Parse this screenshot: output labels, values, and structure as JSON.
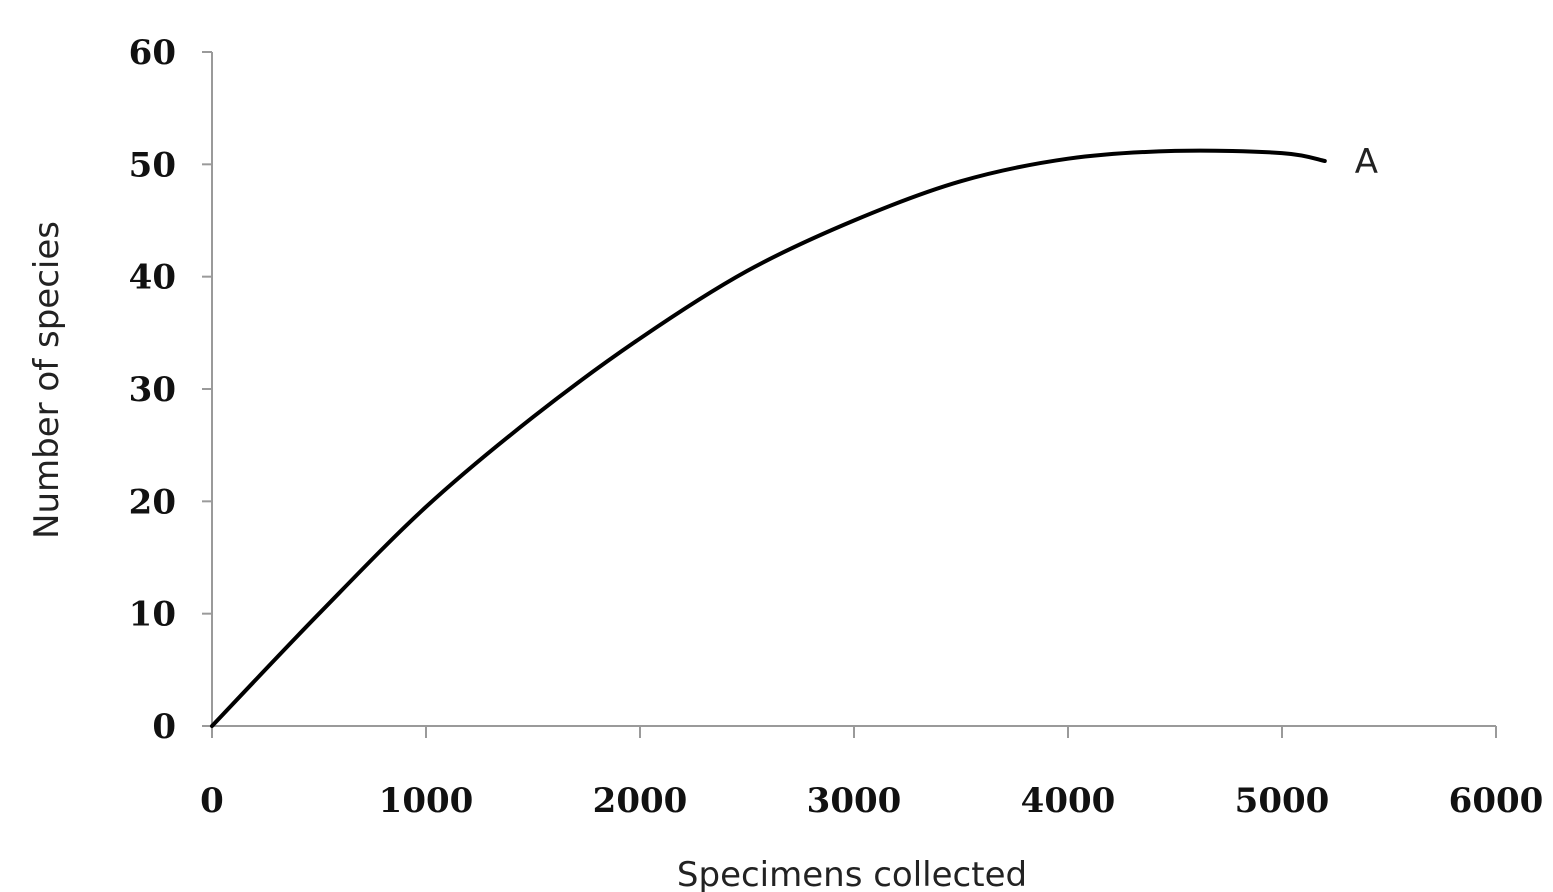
{
  "chart_data": {
    "type": "line",
    "title": "",
    "xlabel": "Specimens collected",
    "ylabel": "Number of species",
    "xlim": [
      0,
      6000
    ],
    "ylim": [
      0,
      60
    ],
    "x_ticks": [
      "0",
      "1000",
      "2000",
      "3000",
      "4000",
      "5000",
      "6000"
    ],
    "y_ticks": [
      "0",
      "10",
      "20",
      "30",
      "40",
      "50",
      "60"
    ],
    "grid": false,
    "legend": "none",
    "series": [
      {
        "color": "#000000",
        "x": [
          0,
          500,
          1000,
          1500,
          2000,
          2500,
          3000,
          3500,
          4000,
          4500,
          5000,
          5200
        ],
        "y": [
          0,
          10,
          19.5,
          27.5,
          34.5,
          40.5,
          45,
          48.5,
          50.5,
          51.2,
          51,
          50.3
        ]
      }
    ],
    "annotations": [
      {
        "text": "A",
        "x": 5200,
        "y": 50.3
      }
    ]
  }
}
